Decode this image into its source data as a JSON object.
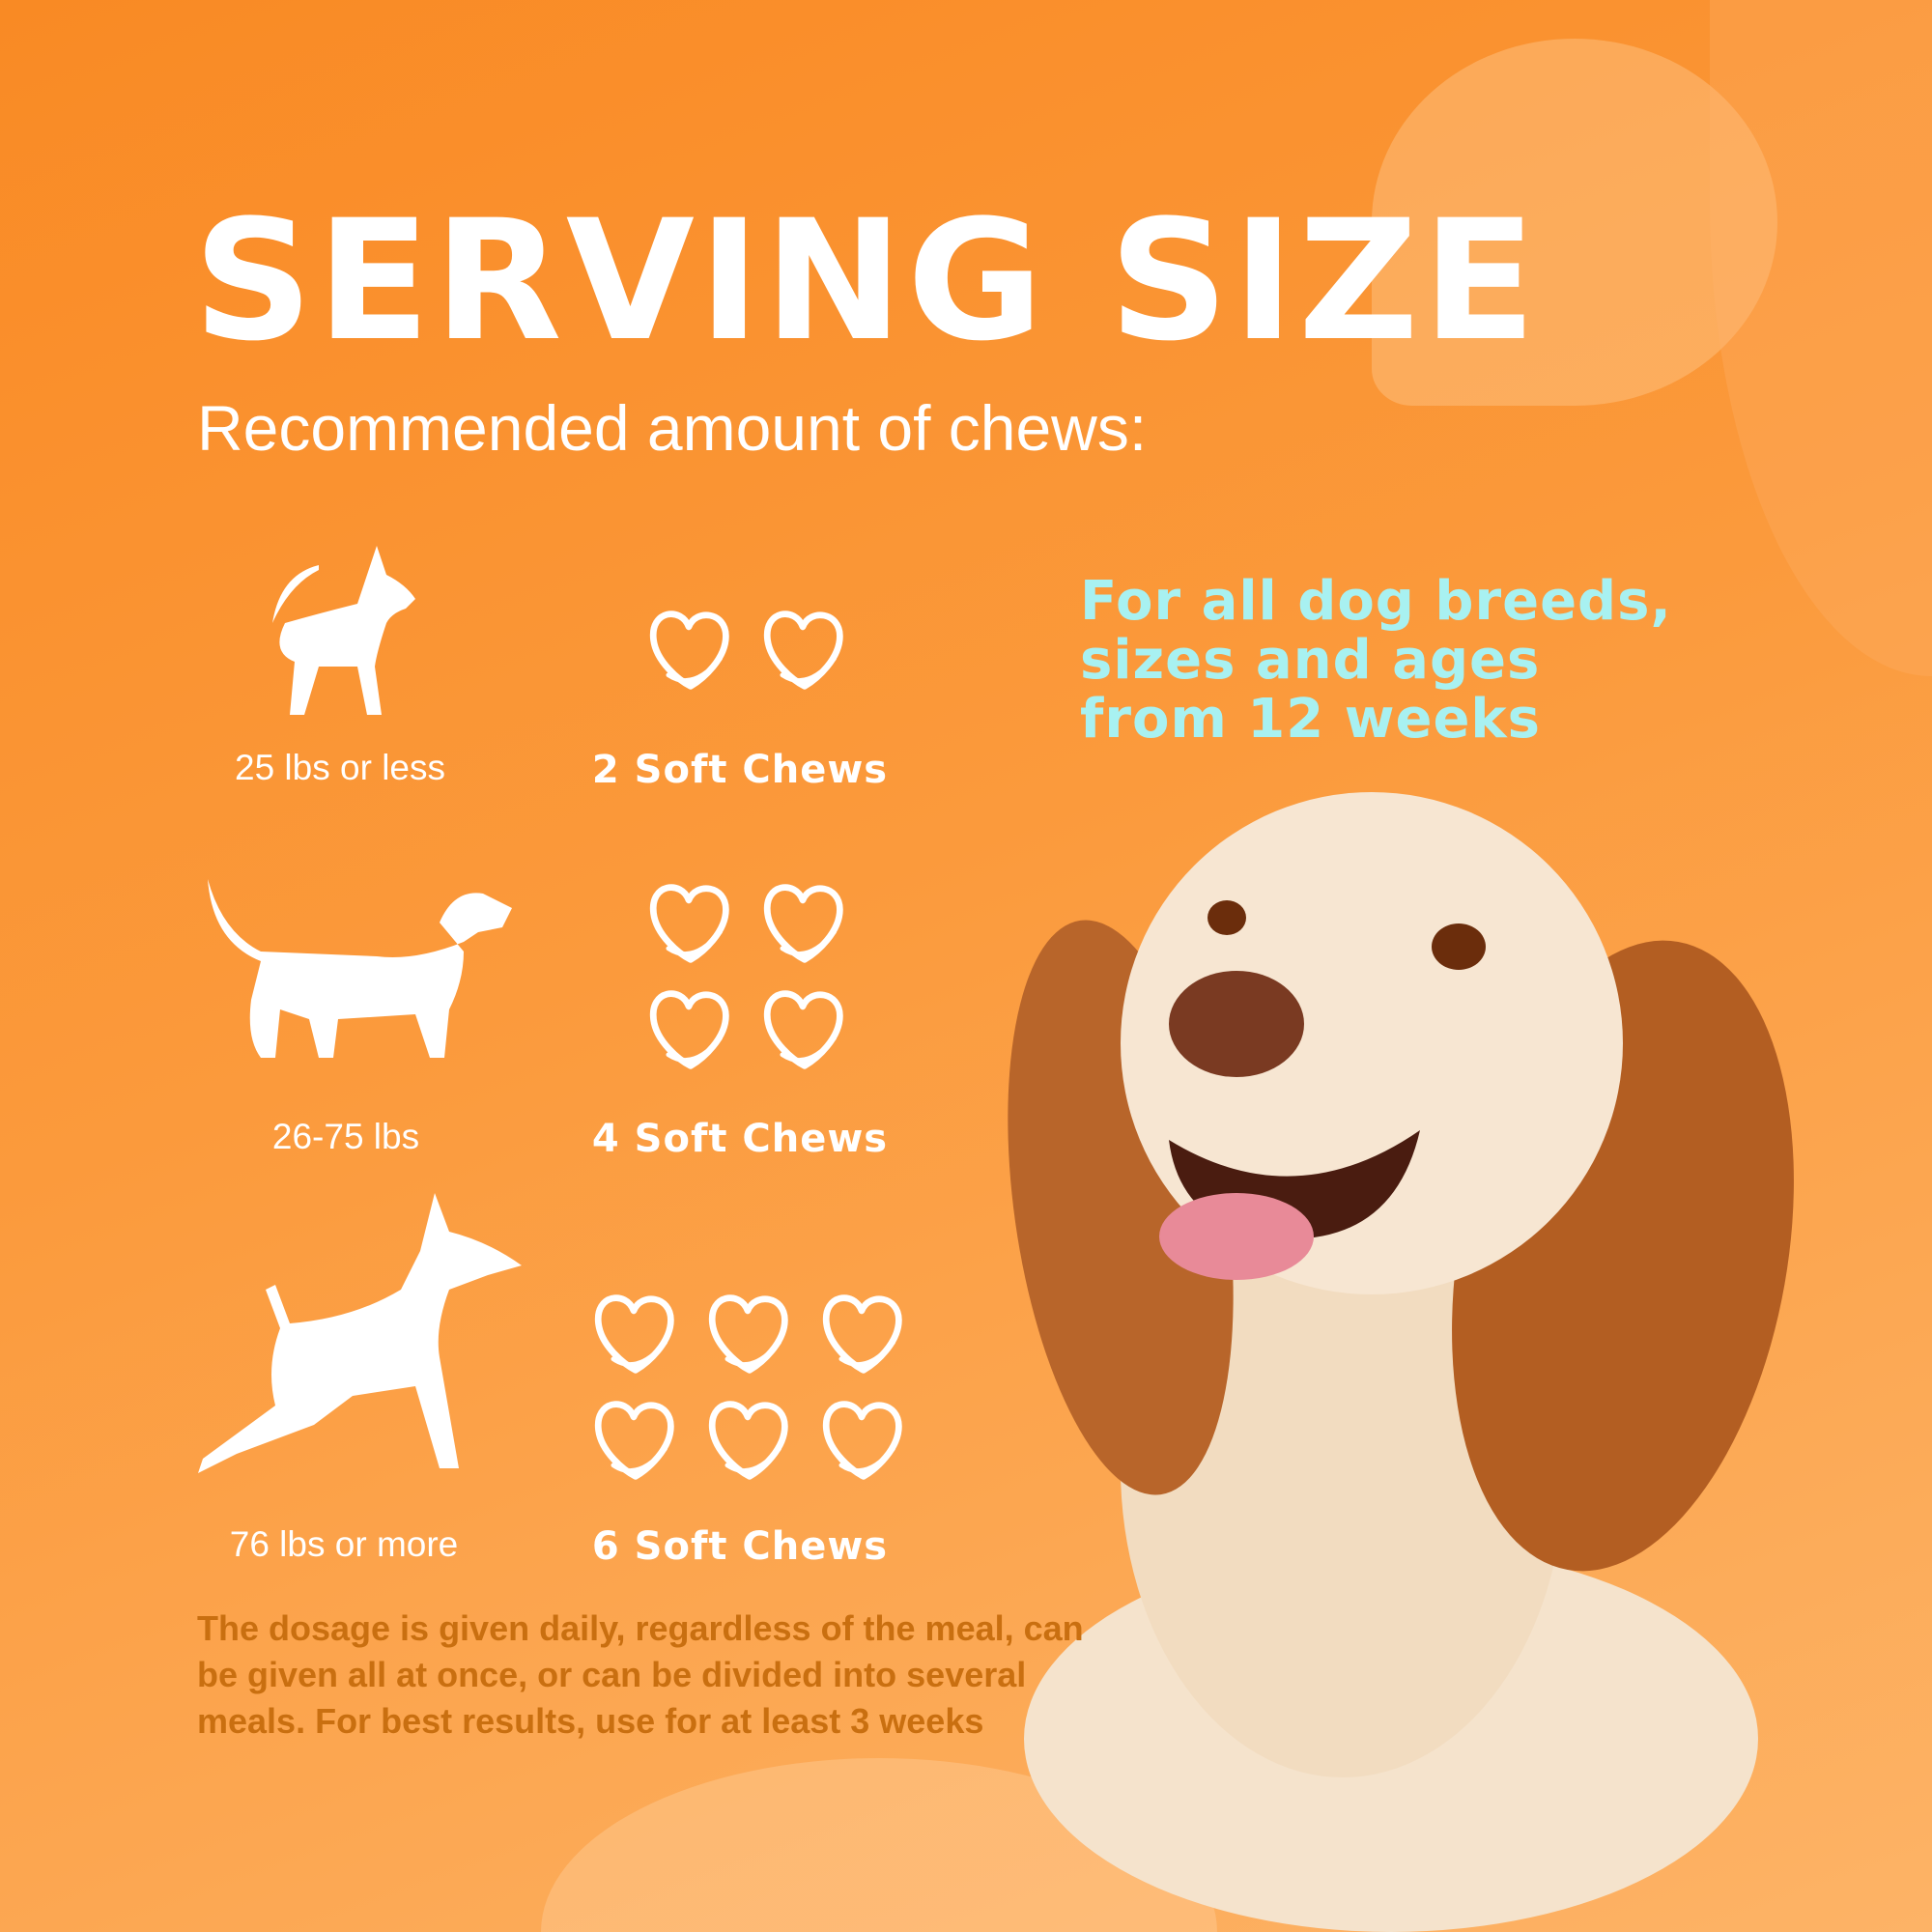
{
  "title": "SERVING SIZE",
  "subtitle": "Recommended amount of chews:",
  "rows": [
    {
      "weight": "25 lbs or less",
      "chews": "2 Soft Chews",
      "count": 2,
      "icon": "small-dog-icon"
    },
    {
      "weight": "26-75 lbs",
      "chews": "4 Soft Chews",
      "count": 4,
      "icon": "medium-dog-icon"
    },
    {
      "weight": "76 lbs or more",
      "chews": "6 Soft Chews",
      "count": 6,
      "icon": "large-dog-icon"
    }
  ],
  "right_text": {
    "line1": "For all dog breeds,",
    "line2": "sizes and ages",
    "line3": "from 12 weeks"
  },
  "footer": {
    "line1": "The dosage is given daily, regardless of the meal, can",
    "line2": "be given all at once, or can be divided into several",
    "line3": "meals. For best results, use for at least 3 weeks"
  },
  "colors": {
    "background": "#fb9a3c",
    "accent_text": "#a8f1f1",
    "footer_text": "#c96f10"
  }
}
